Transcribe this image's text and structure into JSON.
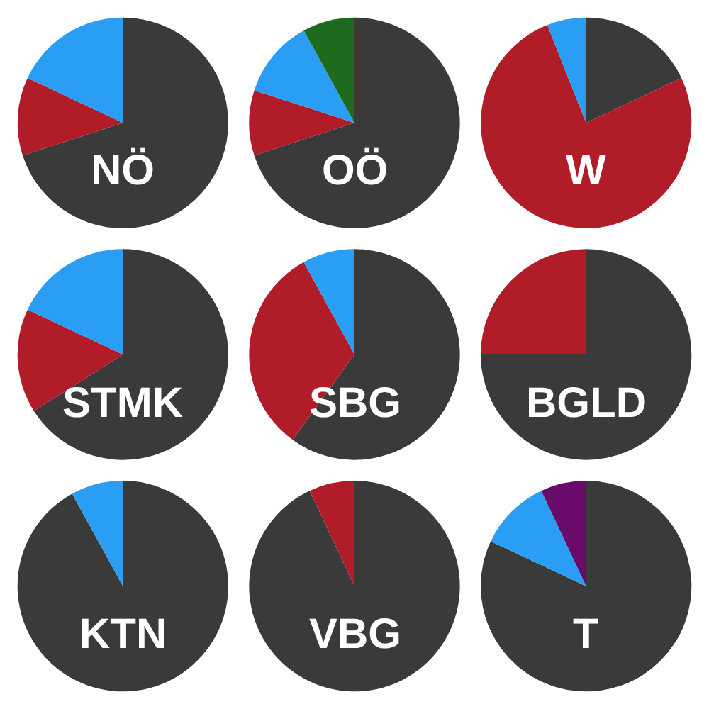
{
  "chart_data": [
    {
      "type": "pie",
      "title": "NÖ",
      "categories": [
        null,
        null,
        null
      ],
      "values": [
        70,
        12,
        18
      ],
      "colors": [
        "#3a3a3a",
        "#b01c28",
        "#2a9df4"
      ]
    },
    {
      "type": "pie",
      "title": "OÖ",
      "categories": [
        null,
        null,
        null,
        null
      ],
      "values": [
        70,
        10,
        12,
        8
      ],
      "colors": [
        "#3a3a3a",
        "#b01c28",
        "#2a9df4",
        "#1e6b1e"
      ]
    },
    {
      "type": "pie",
      "title": "W",
      "categories": [
        null,
        null,
        null
      ],
      "values": [
        18,
        76,
        6
      ],
      "colors": [
        "#3a3a3a",
        "#b01c28",
        "#2a9df4"
      ]
    },
    {
      "type": "pie",
      "title": "STMK",
      "categories": [
        null,
        null,
        null
      ],
      "values": [
        66,
        16,
        18
      ],
      "colors": [
        "#3a3a3a",
        "#b01c28",
        "#2a9df4"
      ]
    },
    {
      "type": "pie",
      "title": "SBG",
      "categories": [
        null,
        null,
        null
      ],
      "values": [
        60,
        32,
        8
      ],
      "colors": [
        "#3a3a3a",
        "#b01c28",
        "#2a9df4"
      ]
    },
    {
      "type": "pie",
      "title": "BGLD",
      "categories": [
        null,
        null
      ],
      "values": [
        75,
        25
      ],
      "colors": [
        "#3a3a3a",
        "#b01c28"
      ]
    },
    {
      "type": "pie",
      "title": "KTN",
      "categories": [
        null,
        null
      ],
      "values": [
        92,
        8
      ],
      "colors": [
        "#3a3a3a",
        "#2a9df4"
      ]
    },
    {
      "type": "pie",
      "title": "VBG",
      "categories": [
        null,
        null
      ],
      "values": [
        93,
        7
      ],
      "colors": [
        "#3a3a3a",
        "#b01c28"
      ]
    },
    {
      "type": "pie",
      "title": "T",
      "categories": [
        null,
        null,
        null
      ],
      "values": [
        82,
        11,
        7
      ],
      "colors": [
        "#3a3a3a",
        "#2a9df4",
        "#6a0a6a"
      ]
    }
  ]
}
